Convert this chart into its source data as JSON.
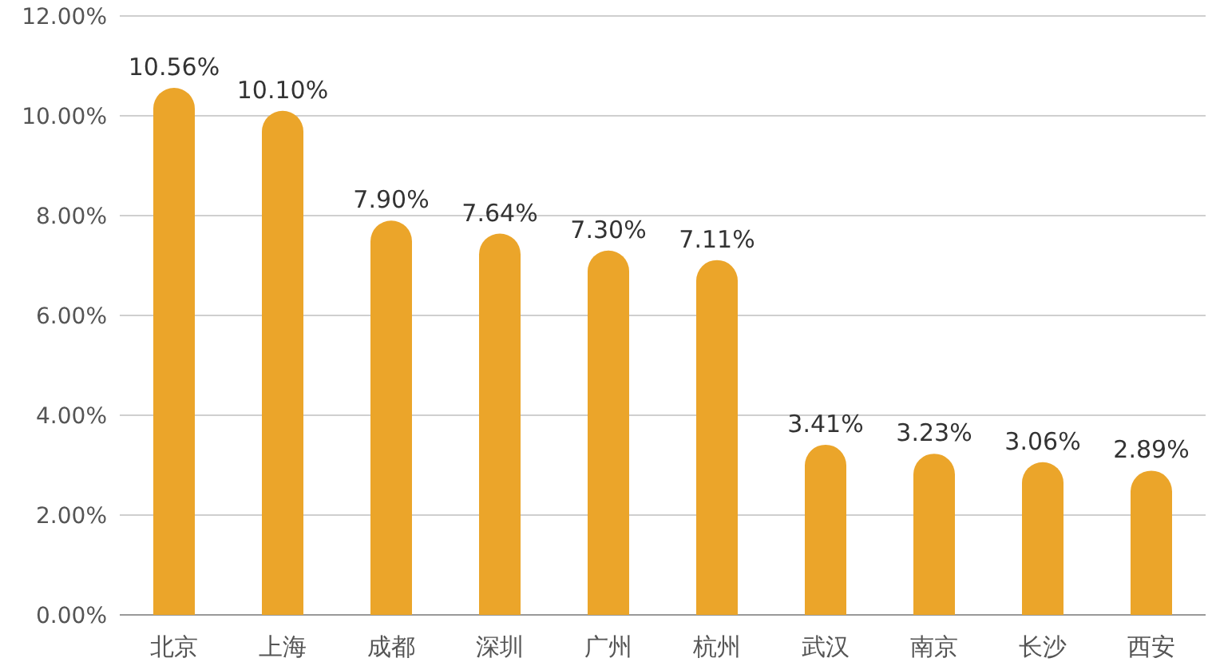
{
  "chart_data": {
    "type": "bar",
    "categories": [
      "北京",
      "上海",
      "成都",
      "深圳",
      "广州",
      "杭州",
      "武汉",
      "南京",
      "长沙",
      "西安"
    ],
    "values": [
      10.56,
      10.1,
      7.9,
      7.64,
      7.3,
      7.11,
      3.41,
      3.23,
      3.06,
      2.89
    ],
    "value_labels": [
      "10.56%",
      "10.10%",
      "7.90%",
      "7.64%",
      "7.30%",
      "7.11%",
      "3.41%",
      "3.23%",
      "3.06%",
      "2.89%"
    ],
    "color": "#eba52a",
    "ylim": [
      0,
      12
    ],
    "yticks": [
      {
        "value": 0,
        "label": "0.00%"
      },
      {
        "value": 2,
        "label": "2.00%"
      },
      {
        "value": 4,
        "label": "4.00%"
      },
      {
        "value": 6,
        "label": "6.00%"
      },
      {
        "value": 8,
        "label": "8.00%"
      },
      {
        "value": 10,
        "label": "10.00%"
      },
      {
        "value": 12,
        "label": "12.00%"
      }
    ],
    "grid": "y"
  }
}
